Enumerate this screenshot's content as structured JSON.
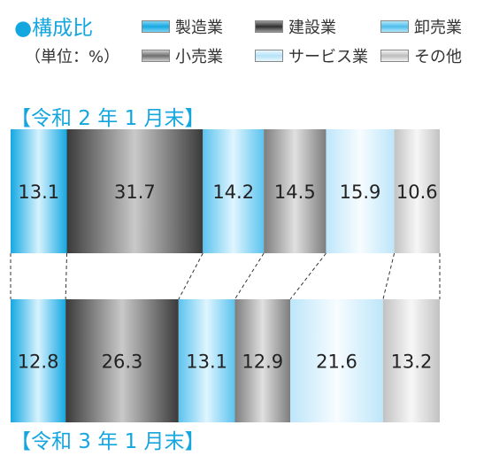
{
  "header": {
    "title": "●構成比",
    "unit": "（単位：%）"
  },
  "legend": [
    {
      "label": "製造業",
      "color": "#15a8e3"
    },
    {
      "label": "建設業",
      "color": "#4d4d4d"
    },
    {
      "label": "卸売業",
      "color": "#5cc3ef"
    },
    {
      "label": "小売業",
      "color": "#8a8a8a"
    },
    {
      "label": "サービス業",
      "color": "#c4e9fb"
    },
    {
      "label": "その他",
      "color": "#cfcfcf"
    }
  ],
  "chart_data": {
    "type": "bar",
    "orientation": "horizontal-stacked-100",
    "categories": [
      "製造業",
      "建設業",
      "卸売業",
      "小売業",
      "サービス業",
      "その他"
    ],
    "series": [
      {
        "name": "【令和 2 年 1 月末】",
        "values": [
          13.1,
          31.7,
          14.2,
          14.5,
          15.9,
          10.6
        ]
      },
      {
        "name": "【令和 3 年 1 月末】",
        "values": [
          12.8,
          26.3,
          13.1,
          12.9,
          21.6,
          13.2
        ]
      }
    ],
    "value_labels": [
      [
        "13.1",
        "31.7",
        "14.2",
        "14.5",
        "15.9",
        "10.6"
      ],
      [
        "12.8",
        "26.3",
        "13.1",
        "12.9",
        "21.6",
        "13.2"
      ]
    ]
  }
}
